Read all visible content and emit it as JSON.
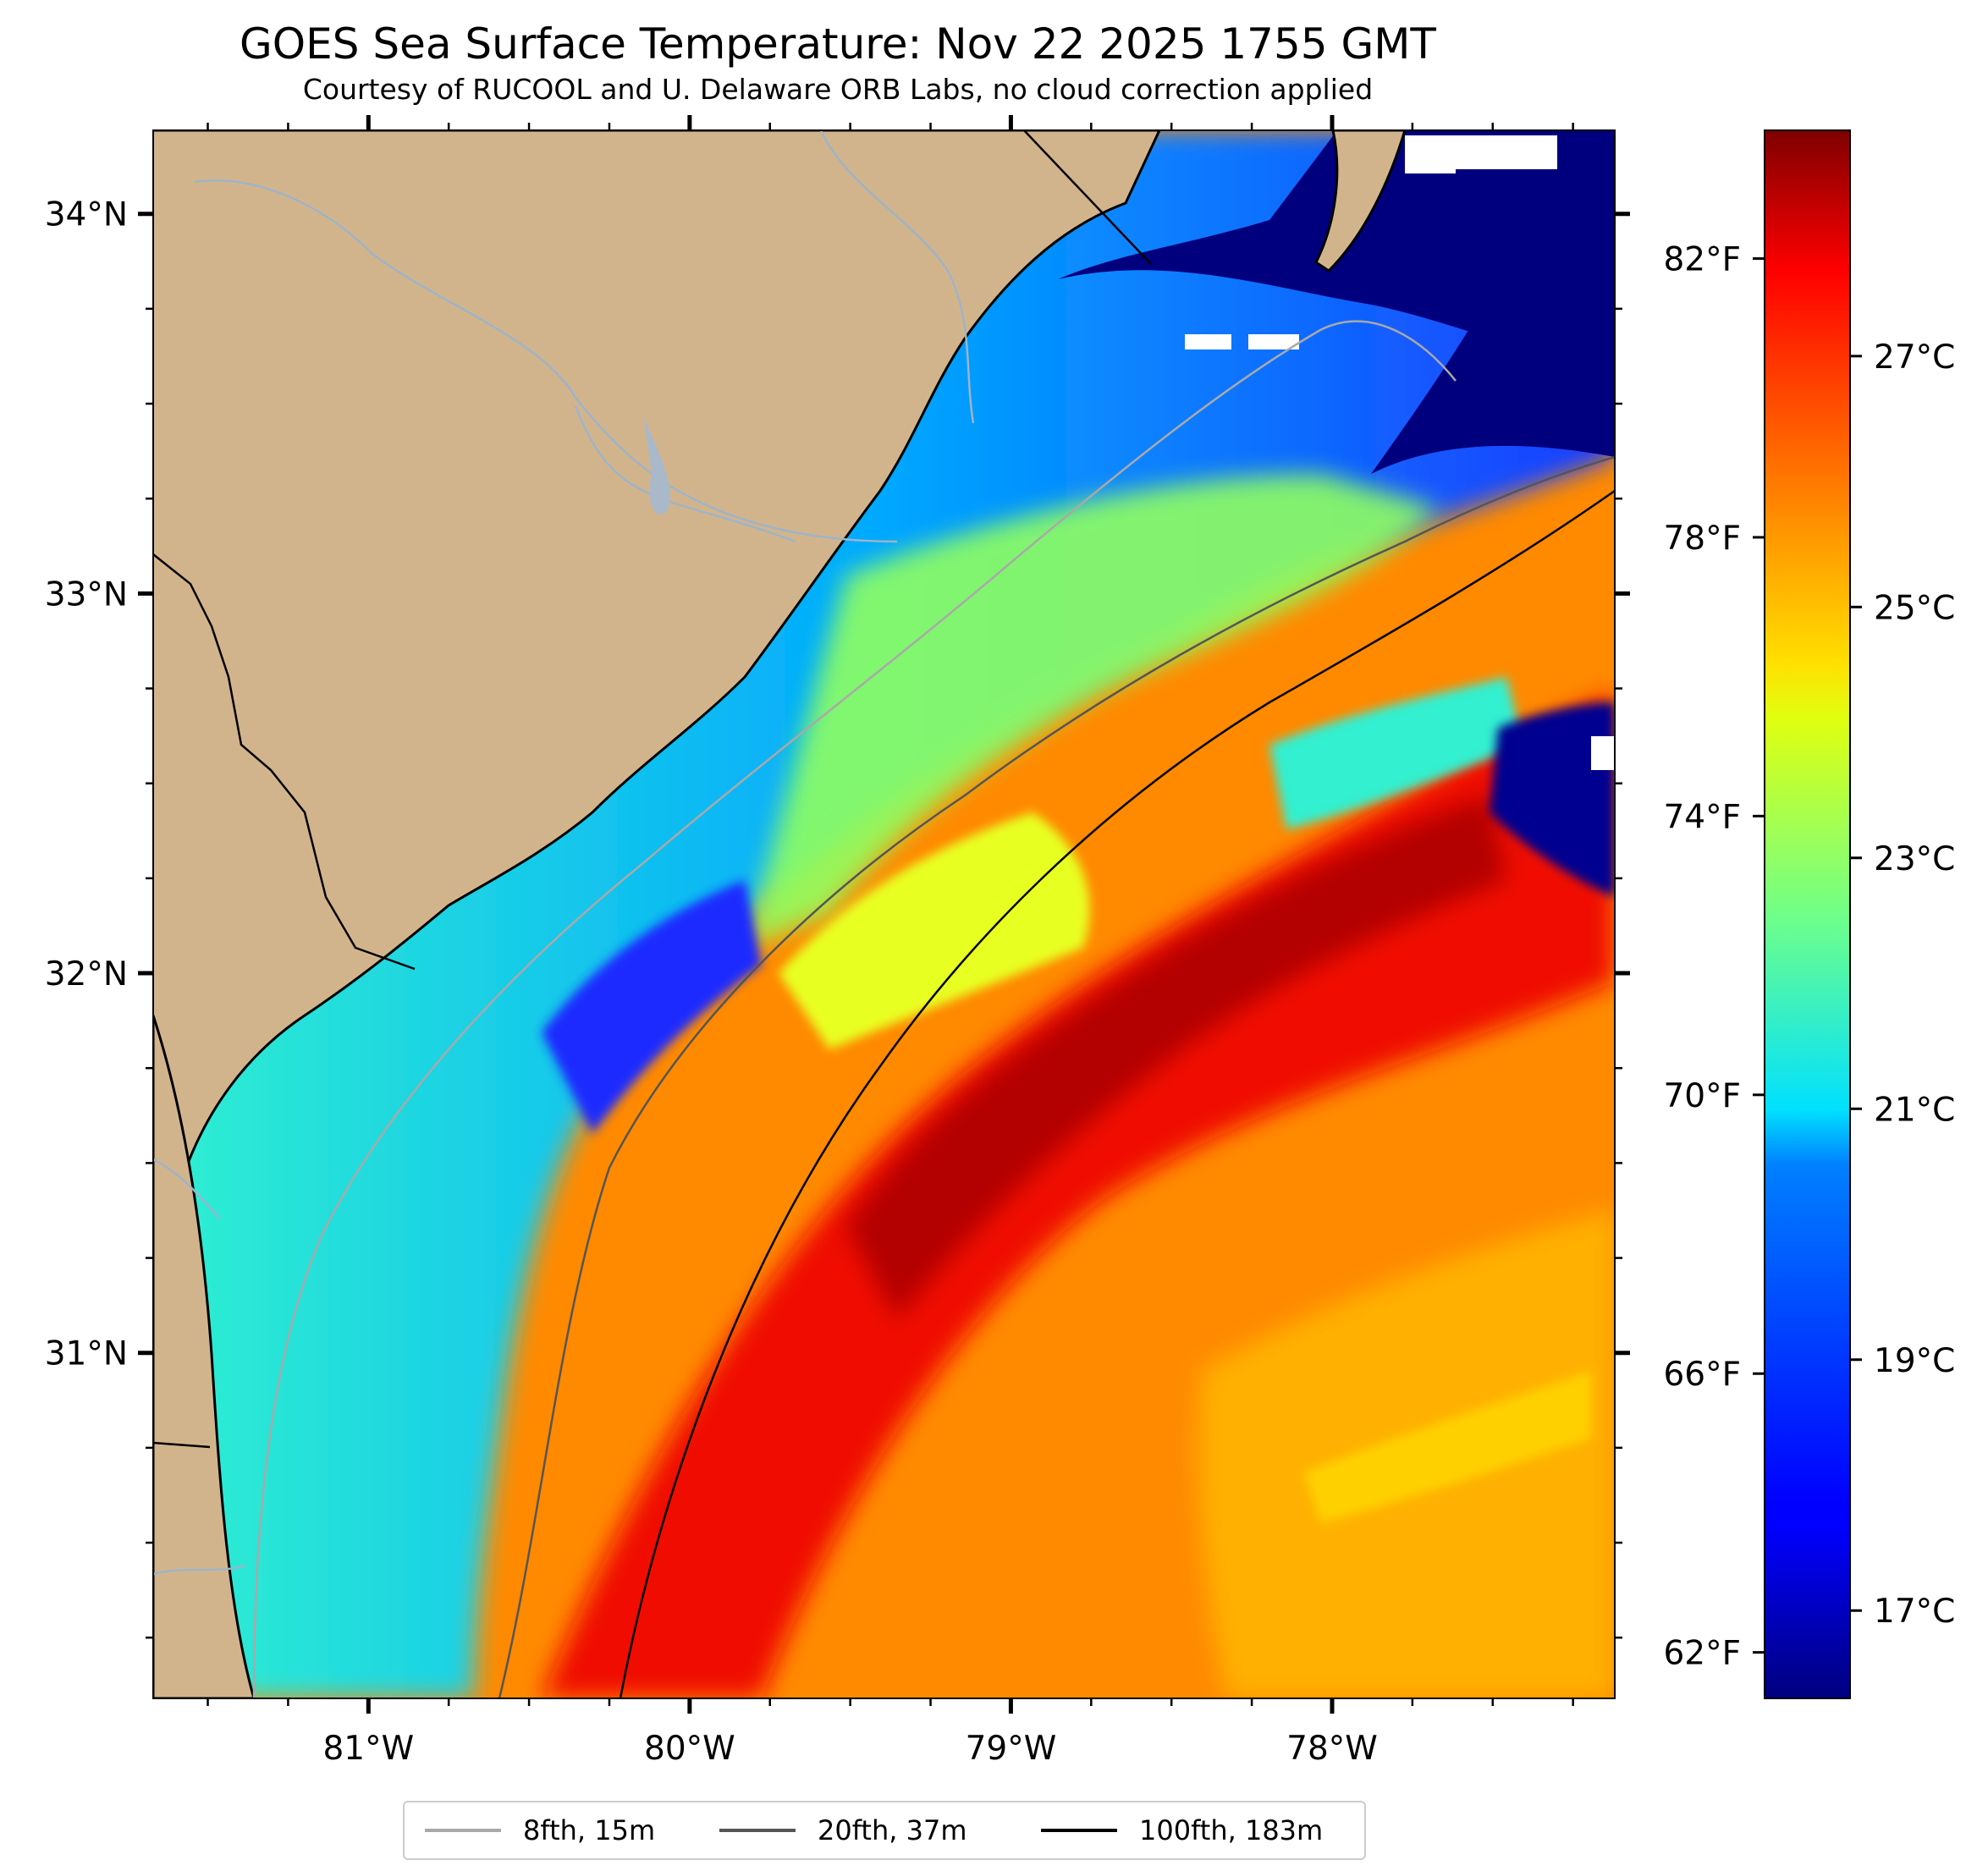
{
  "title": "GOES Sea Surface Temperature: Nov 22 2025 1755 GMT",
  "subtitle": "Courtesy of RUCOOL and U. Delaware ORB Labs, no cloud correction applied",
  "map": {
    "lon_range": [
      -81.67,
      -77.12
    ],
    "lat_range": [
      30.09,
      34.22
    ],
    "lat_ticks": [
      {
        "value": 34,
        "label": "34°N"
      },
      {
        "value": 33,
        "label": "33°N"
      },
      {
        "value": 32,
        "label": "32°N"
      },
      {
        "value": 31,
        "label": "31°N"
      }
    ],
    "lon_ticks": [
      {
        "value": -81,
        "label": "81°W"
      },
      {
        "value": -80,
        "label": "80°W"
      },
      {
        "value": -79,
        "label": "79°W"
      },
      {
        "value": -78,
        "label": "78°W"
      }
    ],
    "land_color": "#d2b48c",
    "colormap": "jet"
  },
  "colorbar": {
    "celsius_range": [
      16.3,
      28.8
    ],
    "celsius_ticks": [
      {
        "value": 17,
        "label": "17°C"
      },
      {
        "value": 19,
        "label": "19°C"
      },
      {
        "value": 21,
        "label": "21°C"
      },
      {
        "value": 23,
        "label": "23°C"
      },
      {
        "value": 25,
        "label": "25°C"
      },
      {
        "value": 27,
        "label": "27°C"
      }
    ],
    "fahrenheit_ticks": [
      {
        "value": 62,
        "label": "62°F"
      },
      {
        "value": 66,
        "label": "66°F"
      },
      {
        "value": 70,
        "label": "70°F"
      },
      {
        "value": 74,
        "label": "74°F"
      },
      {
        "value": 78,
        "label": "78°F"
      },
      {
        "value": 82,
        "label": "82°F"
      }
    ]
  },
  "legend": [
    {
      "label": "8fth, 15m",
      "color": "#a9a9a9"
    },
    {
      "label": "20fth, 37m",
      "color": "#555555"
    },
    {
      "label": "100fth, 183m",
      "color": "#000000"
    }
  ]
}
